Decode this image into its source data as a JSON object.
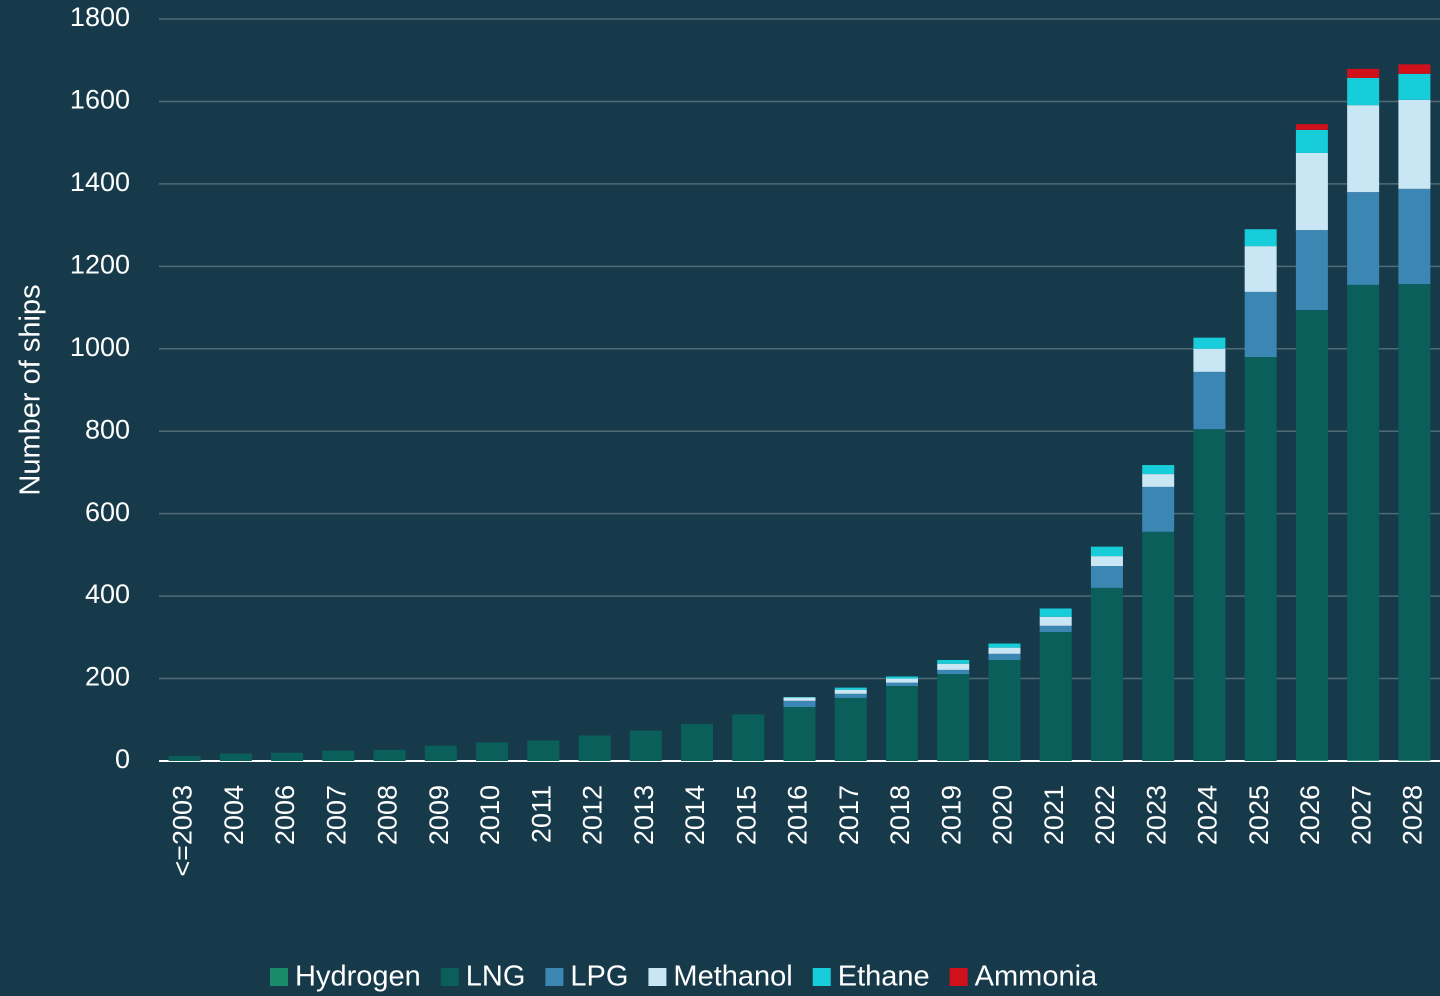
{
  "chart_data": {
    "type": "stacked-bar",
    "y_label": "Number of ships",
    "categories": [
      "<=2003",
      "2004",
      "2006",
      "2007",
      "2008",
      "2009",
      "2010",
      "2011",
      "2012",
      "2013",
      "2014",
      "2015",
      "2016",
      "2017",
      "2018",
      "2019",
      "2020",
      "2021",
      "2022",
      "2023",
      "2024",
      "2025",
      "2026",
      "2027",
      "2028"
    ],
    "series": [
      {
        "name": "Hydrogen",
        "color": "#1b8a68",
        "values": [
          0,
          0,
          0,
          0,
          0,
          0,
          0,
          0,
          0,
          0,
          0,
          0,
          0,
          0,
          0,
          0,
          0,
          0,
          0,
          0,
          0,
          0,
          2,
          2,
          2
        ]
      },
      {
        "name": "LNG",
        "color": "#0b5f5a",
        "values": [
          12,
          18,
          20,
          25,
          27,
          37,
          45,
          50,
          62,
          74,
          90,
          113,
          131,
          153,
          182,
          211,
          245,
          313,
          420,
          556,
          805,
          980,
          1092,
          1153,
          1155
        ]
      },
      {
        "name": "LPG",
        "color": "#3c86b3",
        "values": [
          0,
          0,
          0,
          0,
          0,
          0,
          0,
          0,
          0,
          0,
          0,
          0,
          15,
          10,
          8,
          10,
          15,
          15,
          53,
          109,
          139,
          158,
          194,
          225,
          231
        ]
      },
      {
        "name": "Methanol",
        "color": "#c9e6f5",
        "values": [
          0,
          0,
          0,
          0,
          0,
          0,
          0,
          0,
          0,
          0,
          0,
          0,
          8,
          10,
          10,
          15,
          15,
          22,
          24,
          31,
          56,
          111,
          187,
          211,
          216
        ]
      },
      {
        "name": "Ethane",
        "color": "#17cdd9",
        "values": [
          0,
          0,
          0,
          0,
          0,
          0,
          0,
          0,
          0,
          0,
          0,
          0,
          1,
          5,
          5,
          9,
          10,
          20,
          23,
          22,
          27,
          41,
          56,
          66,
          63
        ]
      },
      {
        "name": "Ammonia",
        "color": "#d0101a",
        "values": [
          0,
          0,
          0,
          0,
          0,
          0,
          0,
          0,
          0,
          0,
          0,
          0,
          0,
          0,
          0,
          0,
          0,
          0,
          0,
          0,
          0,
          0,
          14,
          22,
          23
        ]
      }
    ],
    "ylim": [
      0,
      1800
    ],
    "yticks": [
      0,
      200,
      400,
      600,
      800,
      1000,
      1200,
      1400,
      1600,
      1800
    ],
    "grid": true
  }
}
